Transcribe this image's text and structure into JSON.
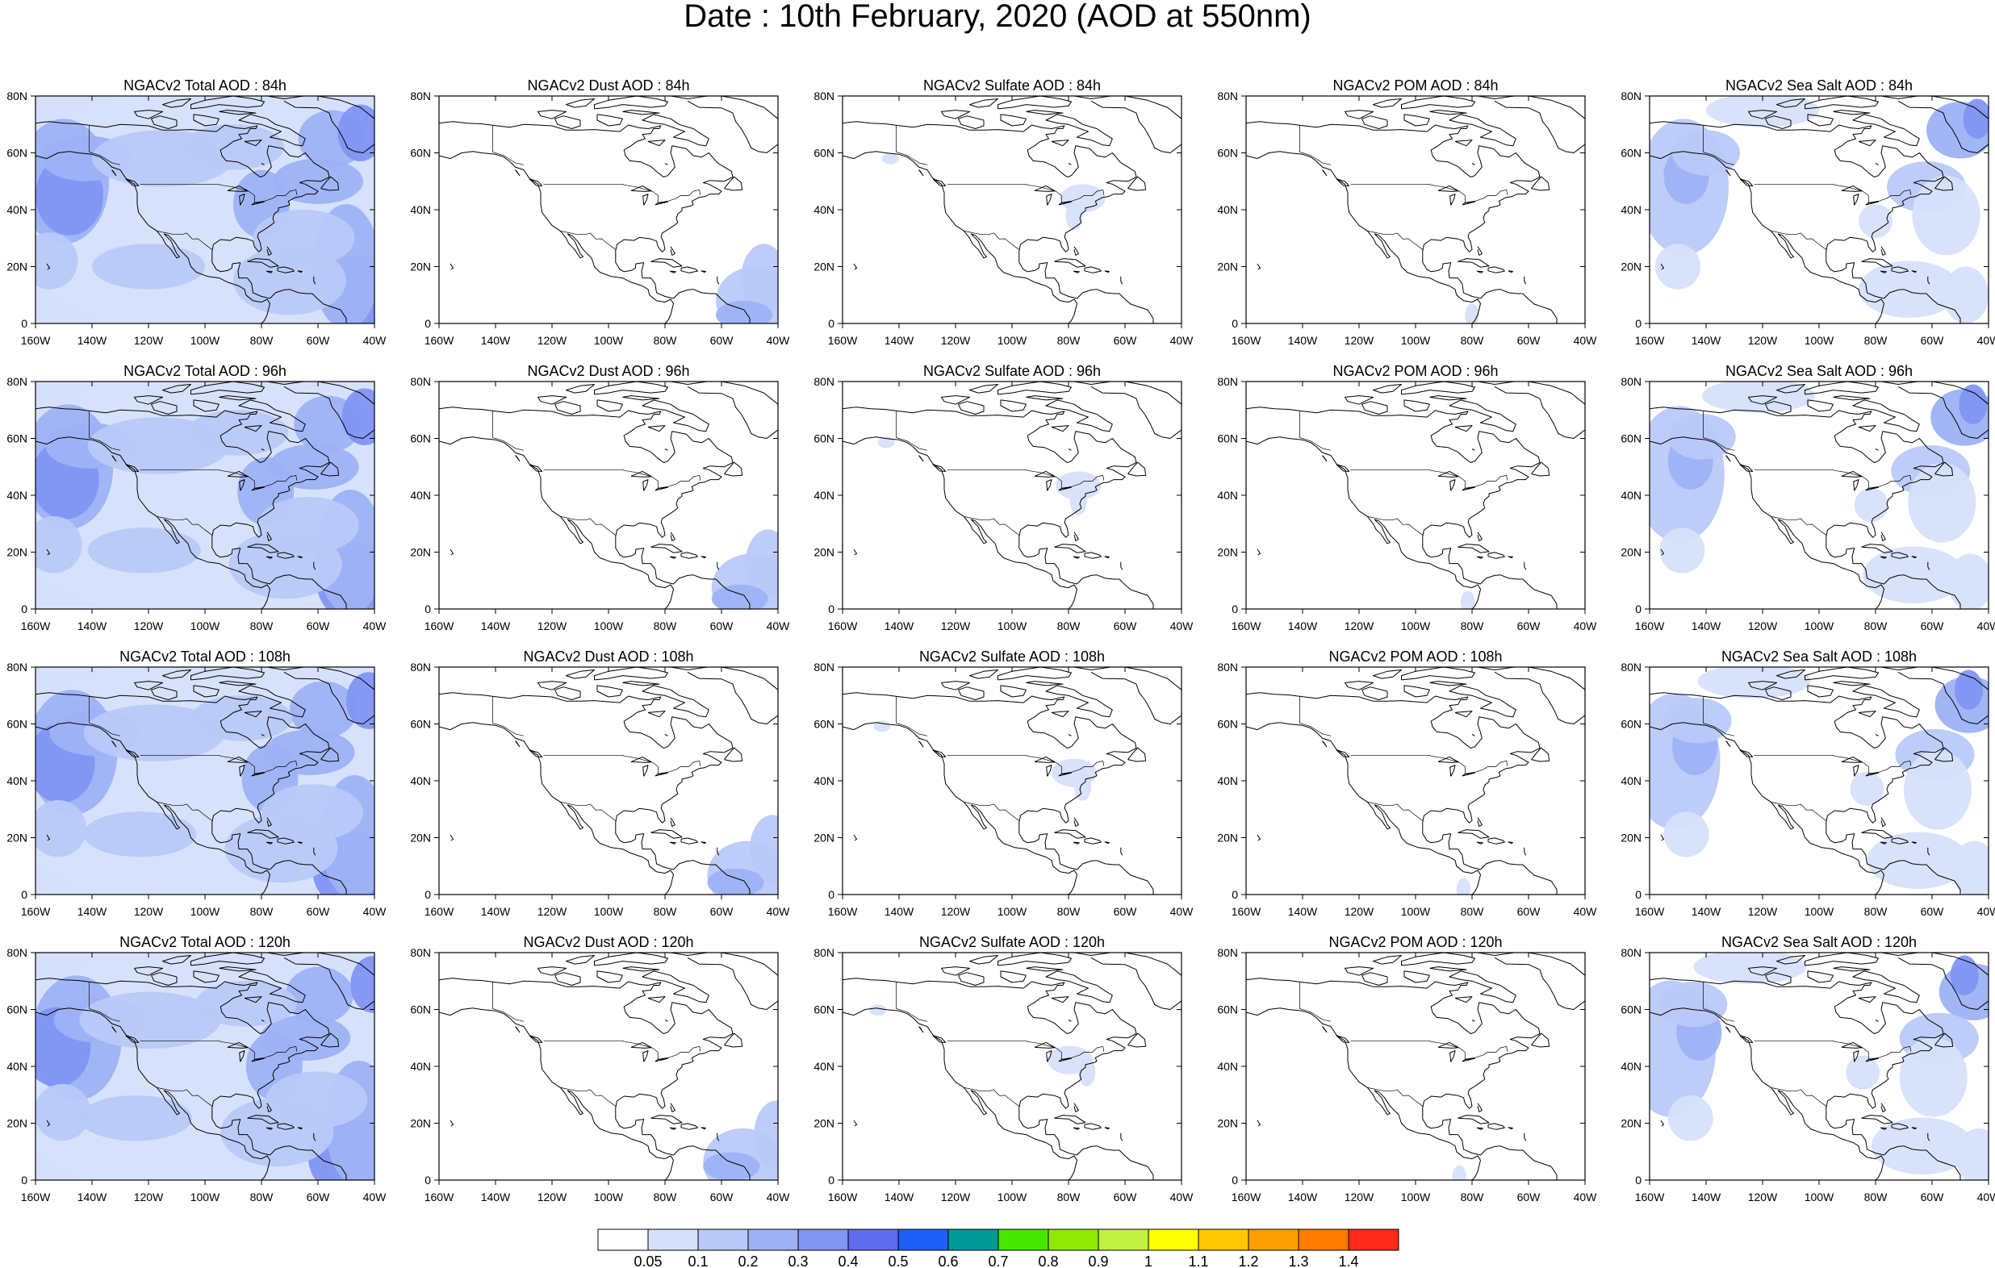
{
  "title": "Date : 10th February, 2020 (AOD at 550nm)",
  "lon_labels": [
    "160W",
    "140W",
    "120W",
    "100W",
    "80W",
    "60W",
    "40W"
  ],
  "lat_labels": [
    "0",
    "20N",
    "40N",
    "60N",
    "80N"
  ],
  "lon_range": [
    -160,
    -40
  ],
  "lat_range": [
    0,
    80
  ],
  "panels": [
    [
      "NGACv2 Total AOD : 84h",
      "NGACv2 Dust AOD : 84h",
      "NGACv2 Sulfate AOD : 84h",
      "NGACv2 POM AOD : 84h",
      "NGACv2 Sea Salt AOD : 84h"
    ],
    [
      "NGACv2 Total AOD : 96h",
      "NGACv2 Dust AOD : 96h",
      "NGACv2 Sulfate AOD : 96h",
      "NGACv2 POM AOD : 96h",
      "NGACv2 Sea Salt AOD : 96h"
    ],
    [
      "NGACv2 Total AOD : 108h",
      "NGACv2 Dust AOD : 108h",
      "NGACv2 Sulfate AOD : 108h",
      "NGACv2 POM AOD : 108h",
      "NGACv2 Sea Salt AOD : 108h"
    ],
    [
      "NGACv2 Total AOD : 120h",
      "NGACv2 Dust AOD : 120h",
      "NGACv2 Sulfate AOD : 120h",
      "NGACv2 POM AOD : 120h",
      "NGACv2 Sea Salt  AOD : 120h"
    ]
  ],
  "colorbar": {
    "labels": [
      "0.05",
      "0.1",
      "0.2",
      "0.3",
      "0.4",
      "0.5",
      "0.6",
      "0.7",
      "0.8",
      "0.9",
      "1",
      "1.1",
      "1.2",
      "1.3",
      "1.4"
    ],
    "colors": [
      "#ffffff",
      "#d6e0fb",
      "#b9c9f8",
      "#9db2f6",
      "#8195f3",
      "#5f6cee",
      "#1e5ff7",
      "#009999",
      "#47e700",
      "#8fe700",
      "#c2f041",
      "#ffff00",
      "#ffc700",
      "#ff9f00",
      "#ff7b00",
      "#ff2a1a"
    ]
  }
}
